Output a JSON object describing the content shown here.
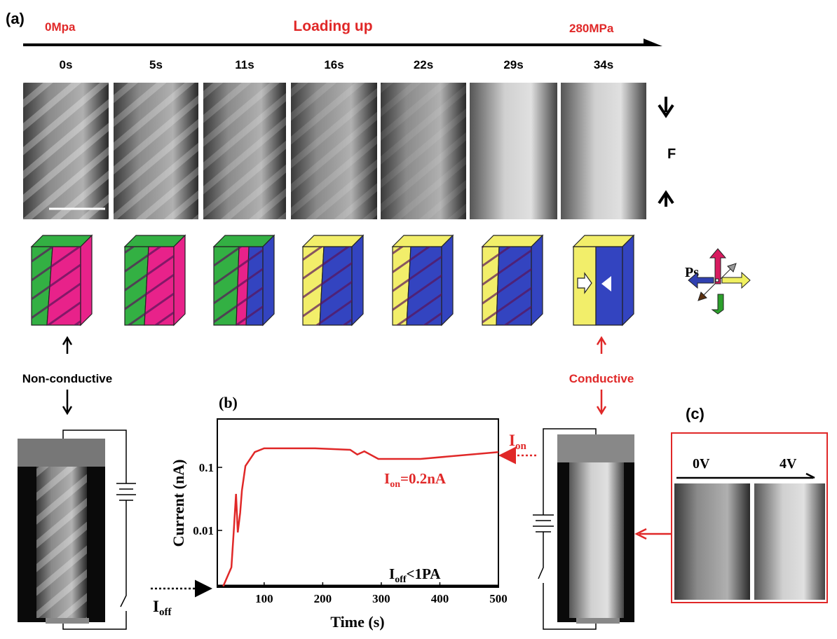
{
  "panel_a": {
    "label": "(a)",
    "start_pressure": "0Mpa",
    "title": "Loading up",
    "end_pressure": "280MPa",
    "times": [
      "0s",
      "5s",
      "11s",
      "16s",
      "22s",
      "29s",
      "34s"
    ],
    "force_label": "F",
    "polarization_label": "Ps",
    "left_state": "Non-conductive",
    "right_state": "Conductive"
  },
  "chart_data": {
    "type": "line",
    "panel_label": "(b)",
    "x_label": "Time (s)",
    "y_label": "Current (nA)",
    "color": "#e02828",
    "log_y": true,
    "x": [
      30,
      44,
      48,
      52,
      55,
      59,
      62,
      68,
      84,
      100,
      187,
      247,
      259,
      271,
      295,
      367,
      500
    ],
    "values": [
      0.0013,
      0.0026,
      0.0095,
      0.038,
      0.0093,
      0.019,
      0.043,
      0.105,
      0.175,
      0.2,
      0.2,
      0.19,
      0.16,
      0.18,
      0.136,
      0.136,
      0.175
    ],
    "xlim": [
      20,
      500
    ],
    "ylim": [
      0.00126,
      0.585
    ],
    "xticks": [
      100,
      200,
      300,
      400,
      500
    ],
    "yticks": [
      0.01,
      0.1
    ],
    "on_label": {
      "symbol": "I",
      "sub": "on",
      "rest": "=0.2nA"
    },
    "off_label": {
      "symbol": "I",
      "sub": "off",
      "rest": "<1PA"
    },
    "on_arrow_label": {
      "symbol": "I",
      "sub": "on"
    },
    "off_arrow_label": {
      "symbol": "I",
      "sub": "off"
    }
  },
  "panel_c": {
    "label": "(c)",
    "start_voltage": "0V",
    "end_voltage": "4V"
  }
}
